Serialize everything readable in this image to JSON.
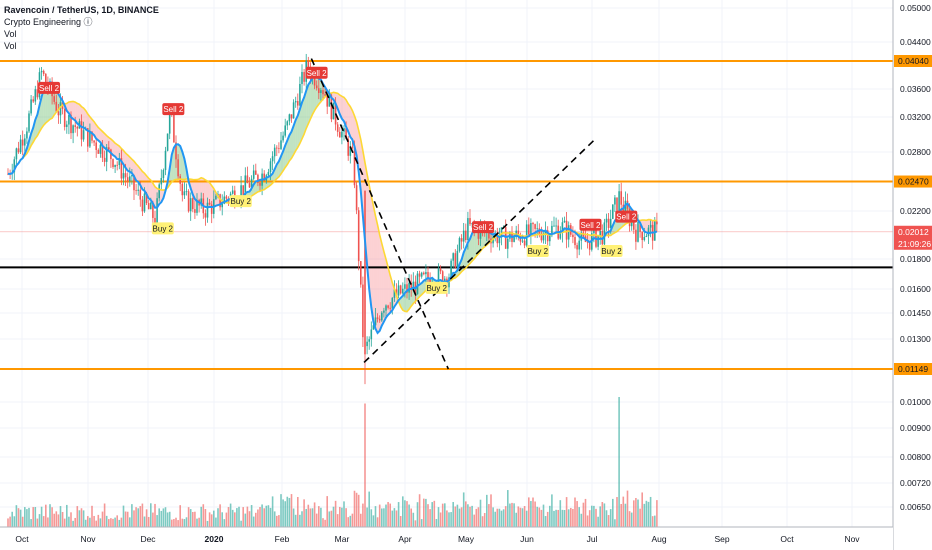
{
  "legend": {
    "title": "Ravencoin / TetherUS, 1D, BINANCE",
    "indicator": "Crypto Engineering ⓘ",
    "vol1": "Vol",
    "vol2": "Vol"
  },
  "colors": {
    "up": "#26a69a",
    "down": "#ef5350",
    "level": "#ff9800",
    "support": "#000000",
    "fast_ma": "#2196f3",
    "slow_ma": "#fdd835",
    "cloud_red": "#f77c80",
    "cloud_green": "#4caf50",
    "sell_label": "#e53935",
    "buy_label": "#fff176",
    "price_tag": "#ef5350"
  },
  "chart_data": {
    "type": "candlestick",
    "symbol": "Ravencoin / TetherUS",
    "interval": "1D",
    "exchange": "BINANCE",
    "price_scale": "log",
    "y_ticks": [
      "0.05000",
      "0.04400",
      "0.03600",
      "0.03200",
      "0.02800",
      "0.02200",
      "0.01800",
      "0.01600",
      "0.01450",
      "0.01300",
      "0.01000",
      "0.00900",
      "0.00800",
      "0.00720",
      "0.00650"
    ],
    "x_ticks": [
      "Oct",
      "Nov",
      "Dec",
      "2020",
      "Feb",
      "Mar",
      "Apr",
      "May",
      "Jun",
      "Jul",
      "Aug",
      "Sep",
      "Oct",
      "Nov"
    ],
    "horizontal_levels": [
      {
        "value": 0.0404,
        "label": "0.04040",
        "color": "#ff9800"
      },
      {
        "value": 0.0247,
        "label": "0.02470",
        "color": "#ff9800"
      },
      {
        "value": 0.01149,
        "label": "0.01149",
        "color": "#ff9800"
      },
      {
        "value": 0.0174,
        "label": "",
        "color": "#000000"
      }
    ],
    "last_price": {
      "value": "0.02012",
      "countdown": "21:09:26"
    },
    "price_path": [
      {
        "date": "2019-09-26",
        "close": 0.0255
      },
      {
        "date": "2019-10-05",
        "close": 0.0312
      },
      {
        "date": "2019-10-12",
        "close": 0.0385
      },
      {
        "date": "2019-10-20",
        "close": 0.033
      },
      {
        "date": "2019-11-01",
        "close": 0.03
      },
      {
        "date": "2019-11-15",
        "close": 0.0272
      },
      {
        "date": "2019-11-28",
        "close": 0.023
      },
      {
        "date": "2019-12-05",
        "close": 0.0212
      },
      {
        "date": "2019-12-12",
        "close": 0.033
      },
      {
        "date": "2019-12-18",
        "close": 0.023
      },
      {
        "date": "2019-12-28",
        "close": 0.022
      },
      {
        "date": "2020-01-05",
        "close": 0.0228
      },
      {
        "date": "2020-01-15",
        "close": 0.024
      },
      {
        "date": "2020-01-25",
        "close": 0.0255
      },
      {
        "date": "2020-02-05",
        "close": 0.0305
      },
      {
        "date": "2020-02-15",
        "close": 0.0395
      },
      {
        "date": "2020-02-22",
        "close": 0.0365
      },
      {
        "date": "2020-03-01",
        "close": 0.031
      },
      {
        "date": "2020-03-08",
        "close": 0.027
      },
      {
        "date": "2020-03-13",
        "close": 0.0122
      },
      {
        "date": "2020-03-22",
        "close": 0.015
      },
      {
        "date": "2020-04-01",
        "close": 0.0158
      },
      {
        "date": "2020-04-12",
        "close": 0.0166
      },
      {
        "date": "2020-04-22",
        "close": 0.0168
      },
      {
        "date": "2020-05-01",
        "close": 0.0205
      },
      {
        "date": "2020-05-10",
        "close": 0.02
      },
      {
        "date": "2020-05-20",
        "close": 0.0196
      },
      {
        "date": "2020-06-01",
        "close": 0.02
      },
      {
        "date": "2020-06-15",
        "close": 0.0205
      },
      {
        "date": "2020-06-25",
        "close": 0.0192
      },
      {
        "date": "2020-07-05",
        "close": 0.02
      },
      {
        "date": "2020-07-12",
        "close": 0.0232
      },
      {
        "date": "2020-07-20",
        "close": 0.0202
      },
      {
        "date": "2020-07-30",
        "close": 0.0201
      }
    ],
    "signals": [
      {
        "type": "sell",
        "text": "Sell 2",
        "date": "2019-10-15",
        "price": 0.0362
      },
      {
        "type": "sell",
        "text": "Sell 2",
        "date": "2019-12-13",
        "price": 0.0332
      },
      {
        "type": "sell",
        "text": "Sell 2",
        "date": "2020-02-19",
        "price": 0.0385
      },
      {
        "type": "sell",
        "text": "Sell 2",
        "date": "2020-05-08",
        "price": 0.0205
      },
      {
        "type": "sell",
        "text": "Sell 2",
        "date": "2020-06-28",
        "price": 0.0207
      },
      {
        "type": "sell",
        "text": "Sell 2",
        "date": "2020-07-15",
        "price": 0.0214
      },
      {
        "type": "buy",
        "text": "Buy 2",
        "date": "2019-12-08",
        "price": 0.0204
      },
      {
        "type": "buy",
        "text": "Buy 2",
        "date": "2020-01-14",
        "price": 0.0228
      },
      {
        "type": "buy",
        "text": "Buy 2",
        "date": "2020-04-16",
        "price": 0.016
      },
      {
        "type": "buy",
        "text": "Buy 2",
        "date": "2020-06-03",
        "price": 0.0186
      },
      {
        "type": "buy",
        "text": "Buy 2",
        "date": "2020-07-08",
        "price": 0.0186
      }
    ],
    "volume_spikes": [
      {
        "date": "2020-03-13",
        "relative": 0.95
      },
      {
        "date": "2020-07-12",
        "relative": 1.0
      }
    ]
  }
}
